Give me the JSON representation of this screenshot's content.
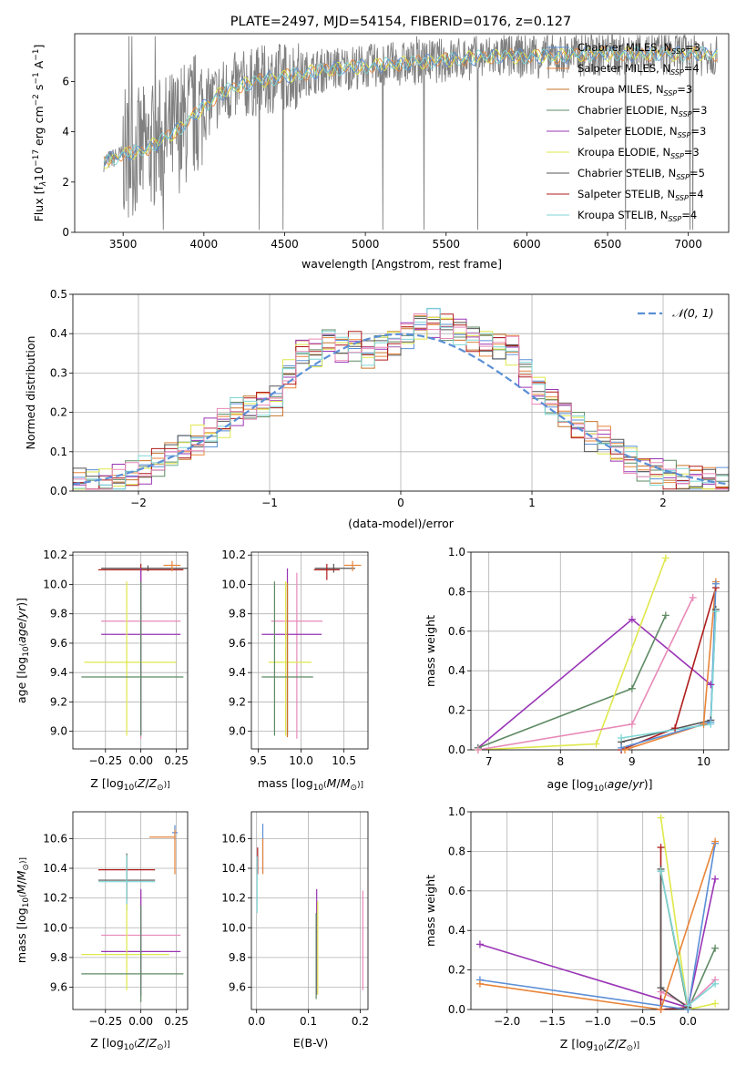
{
  "title": "PLATE=2497, MJD=54154, FIBERID=0176, z=0.127",
  "colors": {
    "chabrier_miles": "#5b8fd6",
    "salpeter_miles": "#e8853a",
    "kroupa_miles": "#c8732a",
    "chabrier_elodie": "#5e8a64",
    "salpeter_elodie": "#9a35b5",
    "kroupa_elodie": "#dfe84a",
    "chabrier_stelib": "#555555",
    "salpeter_stelib": "#b01c1c",
    "kroupa_stelib": "#7fd6d6",
    "pink": "#e88ab8",
    "data": "#808080",
    "normal": "#5b8fd6",
    "grid": "#b0b0b0"
  },
  "chart_data": [
    {
      "type": "line",
      "title": "PLATE=2497, MJD=54154, FIBERID=0176, z=0.127",
      "xlabel": "wavelength [Angstrom, rest frame]",
      "ylabel_parts": [
        "Flux [f",
        "λ",
        "10",
        "−17",
        " erg cm",
        "−2",
        " s",
        "−1",
        " A",
        "−1",
        "]"
      ],
      "xlim": [
        3200,
        7250
      ],
      "ylim": [
        0,
        7.9
      ],
      "xticks": [
        3500,
        4000,
        4500,
        5000,
        5500,
        6000,
        6500,
        7000
      ],
      "yticks": [
        0,
        2,
        4,
        6
      ],
      "continuum": [
        [
          3380,
          2.8
        ],
        [
          3500,
          3.1
        ],
        [
          3600,
          3.2
        ],
        [
          3700,
          3.5
        ],
        [
          3800,
          3.9
        ],
        [
          3900,
          4.4
        ],
        [
          4000,
          5.0
        ],
        [
          4100,
          5.5
        ],
        [
          4200,
          5.8
        ],
        [
          4400,
          6.1
        ],
        [
          4600,
          6.3
        ],
        [
          4800,
          6.5
        ],
        [
          5000,
          6.6
        ],
        [
          5200,
          6.7
        ],
        [
          5400,
          6.8
        ],
        [
          5600,
          6.9
        ],
        [
          5800,
          7.0
        ],
        [
          6000,
          7.0
        ],
        [
          6200,
          7.0
        ],
        [
          6400,
          7.1
        ],
        [
          6600,
          7.1
        ],
        [
          6800,
          7.1
        ],
        [
          7000,
          7.1
        ],
        [
          7180,
          7.1
        ]
      ],
      "legend": [
        {
          "label": "Chabrier MILES, N",
          "sub": "SSP",
          "tail": "=3",
          "color": "chabrier_miles"
        },
        {
          "label": "Salpeter MILES, N",
          "sub": "SSP",
          "tail": "=4",
          "color": "salpeter_miles"
        },
        {
          "label": "Kroupa MILES, N",
          "sub": "SSP",
          "tail": "=3",
          "color": "kroupa_miles"
        },
        {
          "label": "Chabrier ELODIE, N",
          "sub": "SSP",
          "tail": "=3",
          "color": "chabrier_elodie"
        },
        {
          "label": "Salpeter ELODIE, N",
          "sub": "SSP",
          "tail": "=3",
          "color": "salpeter_elodie"
        },
        {
          "label": "Kroupa ELODIE, N",
          "sub": "SSP",
          "tail": "=3",
          "color": "kroupa_elodie"
        },
        {
          "label": "Chabrier STELIB, N",
          "sub": "SSP",
          "tail": "=5",
          "color": "chabrier_stelib"
        },
        {
          "label": "Salpeter STELIB, N",
          "sub": "SSP",
          "tail": "=4",
          "color": "salpeter_stelib"
        },
        {
          "label": "Kroupa STELIB, N",
          "sub": "SSP",
          "tail": "=4",
          "color": "kroupa_stelib"
        }
      ],
      "legend_position": "upper right"
    },
    {
      "type": "histogram",
      "xlabel": "(data-model)/error",
      "ylabel": "Normed distribution",
      "xlim": [
        -2.5,
        2.5
      ],
      "ylim": [
        0,
        0.5
      ],
      "xticks": [
        -2,
        -1,
        0,
        1,
        2
      ],
      "yticks": [
        0.0,
        0.1,
        0.2,
        0.3,
        0.4,
        0.5
      ],
      "bin_edges": [
        -2.5,
        -2.4,
        -2.3,
        -2.2,
        -2.1,
        -2.0,
        -1.9,
        -1.8,
        -1.7,
        -1.6,
        -1.5,
        -1.4,
        -1.3,
        -1.2,
        -1.1,
        -1.0,
        -0.9,
        -0.8,
        -0.7,
        -0.6,
        -0.5,
        -0.4,
        -0.3,
        -0.2,
        -0.1,
        0.0,
        0.1,
        0.2,
        0.3,
        0.4,
        0.5,
        0.6,
        0.7,
        0.8,
        0.9,
        1.0,
        1.1,
        1.2,
        1.3,
        1.4,
        1.5,
        1.6,
        1.7,
        1.8,
        1.9,
        2.0,
        2.1,
        2.2,
        2.3,
        2.4,
        2.5
      ],
      "base_values": [
        0.02,
        0.02,
        0.025,
        0.03,
        0.04,
        0.05,
        0.07,
        0.09,
        0.11,
        0.13,
        0.15,
        0.17,
        0.2,
        0.21,
        0.22,
        0.23,
        0.3,
        0.36,
        0.35,
        0.38,
        0.36,
        0.37,
        0.35,
        0.37,
        0.38,
        0.4,
        0.42,
        0.43,
        0.42,
        0.41,
        0.39,
        0.38,
        0.37,
        0.36,
        0.3,
        0.26,
        0.23,
        0.2,
        0.17,
        0.14,
        0.13,
        0.1,
        0.08,
        0.06,
        0.05,
        0.04,
        0.03,
        0.03,
        0.025,
        0.02
      ],
      "normal_label": "𝒩(0, 1)",
      "legend_position": "upper right"
    },
    {
      "type": "errorbar",
      "xlabel": "Z [log10(Z/Z⊙)]",
      "ylabel": "age [log10(age/yr)]",
      "xlim": [
        -0.48,
        0.33
      ],
      "ylim": [
        8.88,
        10.22
      ],
      "xticks": [
        -0.25,
        0.0,
        0.25
      ],
      "yticks": [
        9.0,
        9.2,
        9.4,
        9.6,
        9.8,
        10.0,
        10.2
      ],
      "points": [
        {
          "x": 0.05,
          "y": 10.11,
          "xerr": [
            0.33,
            0.33
          ],
          "yerr": [
            0.02,
            0.02
          ],
          "color": "chabrier_stelib"
        },
        {
          "x": 0.0,
          "y": 10.1,
          "xerr": [
            0.3,
            0.3
          ],
          "yerr": [
            0.1,
            0.04
          ],
          "color": "salpeter_stelib"
        },
        {
          "x": 0.22,
          "y": 10.13,
          "xerr": [
            0.06,
            0.06
          ],
          "yerr": [
            0.04,
            0.03
          ],
          "color": "salpeter_miles"
        },
        {
          "x": 0.0,
          "y": 9.75,
          "xerr": [
            0.28,
            0.28
          ],
          "yerr": [
            0.8,
            0.33
          ],
          "color": "pink"
        },
        {
          "x": 0.0,
          "y": 9.66,
          "xerr": [
            0.28,
            0.28
          ],
          "yerr": [
            0.68,
            0.45
          ],
          "color": "salpeter_elodie"
        },
        {
          "x": -0.1,
          "y": 9.47,
          "xerr": [
            0.3,
            0.35
          ],
          "yerr": [
            0.5,
            0.55
          ],
          "color": "kroupa_elodie"
        },
        {
          "x": 0.0,
          "y": 9.37,
          "xerr": [
            0.42,
            0.3
          ],
          "yerr": [
            0.4,
            0.65
          ],
          "color": "chabrier_elodie"
        }
      ]
    },
    {
      "type": "errorbar",
      "xlabel": "mass [log10(M/M⊙)]",
      "xlim": [
        9.42,
        10.78
      ],
      "ylim": [
        8.88,
        10.22
      ],
      "xticks": [
        9.5,
        10.0,
        10.5
      ],
      "yticks": [
        9.0,
        9.2,
        9.4,
        9.6,
        9.8,
        10.0,
        10.2
      ],
      "points": [
        {
          "x": 10.38,
          "y": 10.11,
          "xerr": [
            0.22,
            0.25
          ],
          "yerr": [
            0.03,
            0.03
          ],
          "color": "chabrier_stelib"
        },
        {
          "x": 10.6,
          "y": 10.13,
          "xerr": [
            0.1,
            0.1
          ],
          "yerr": [
            0.04,
            0.03
          ],
          "color": "salpeter_miles"
        },
        {
          "x": 10.3,
          "y": 10.1,
          "xerr": [
            0.15,
            0.15
          ],
          "yerr": [
            0.07,
            0.04
          ],
          "color": "salpeter_stelib"
        },
        {
          "x": 9.95,
          "y": 9.75,
          "xerr": [
            0.3,
            0.3
          ],
          "yerr": [
            0.8,
            0.33
          ],
          "color": "pink"
        },
        {
          "x": 9.84,
          "y": 9.66,
          "xerr": [
            0.3,
            0.4
          ],
          "yerr": [
            0.68,
            0.45
          ],
          "color": "salpeter_elodie"
        },
        {
          "x": 9.82,
          "y": 9.47,
          "xerr": [
            0.2,
            0.3
          ],
          "yerr": [
            0.5,
            0.55
          ],
          "color": "kroupa_elodie"
        },
        {
          "x": 9.69,
          "y": 9.37,
          "xerr": [
            0.15,
            0.45
          ],
          "yerr": [
            0.4,
            0.65
          ],
          "color": "chabrier_elodie"
        },
        {
          "x": 9.84,
          "y": 9.66,
          "xerr": [
            0.0,
            0.0
          ],
          "yerr": [
            0.7,
            0.35
          ],
          "color": "kroupa_miles"
        }
      ]
    },
    {
      "type": "line",
      "xlabel": "age [log10(age/yr)]",
      "ylabel": "mass weight",
      "xlim": [
        6.75,
        10.35
      ],
      "ylim": [
        0,
        1.0
      ],
      "xticks": [
        7,
        8,
        9,
        10
      ],
      "yticks": [
        0.0,
        0.2,
        0.4,
        0.6,
        0.8,
        1.0
      ],
      "series": [
        {
          "color": "salpeter_elodie",
          "x": [
            6.85,
            9.0,
            10.1
          ],
          "y": [
            0.01,
            0.66,
            0.33
          ]
        },
        {
          "color": "chabrier_elodie",
          "x": [
            6.85,
            9.0,
            9.47
          ],
          "y": [
            0.01,
            0.31,
            0.68
          ]
        },
        {
          "color": "kroupa_elodie",
          "x": [
            6.85,
            8.5,
            9.47
          ],
          "y": [
            0.0,
            0.03,
            0.97
          ]
        },
        {
          "color": "pink",
          "x": [
            6.85,
            9.0,
            9.85
          ],
          "y": [
            0.0,
            0.13,
            0.77
          ]
        },
        {
          "color": "salpeter_stelib",
          "x": [
            8.85,
            9.6,
            10.17
          ],
          "y": [
            0.0,
            0.11,
            0.82
          ]
        },
        {
          "color": "chabrier_stelib",
          "x": [
            8.85,
            10.1,
            10.17
          ],
          "y": [
            0.04,
            0.15,
            0.71
          ]
        },
        {
          "color": "salpeter_miles",
          "x": [
            8.9,
            10.0,
            10.17
          ],
          "y": [
            0.0,
            0.13,
            0.85
          ]
        },
        {
          "color": "chabrier_miles",
          "x": [
            8.85,
            10.1,
            10.17
          ],
          "y": [
            0.01,
            0.14,
            0.84
          ]
        },
        {
          "color": "kroupa_stelib",
          "x": [
            8.85,
            10.1,
            10.17
          ],
          "y": [
            0.06,
            0.13,
            0.7
          ]
        }
      ]
    },
    {
      "type": "errorbar",
      "xlabel": "Z [log10(Z/Z⊙)]",
      "ylabel": "mass [log10(M/M⊙)]",
      "xlim": [
        -0.48,
        0.33
      ],
      "ylim": [
        9.45,
        10.78
      ],
      "xticks": [
        -0.25,
        0.0,
        0.25
      ],
      "yticks": [
        9.6,
        9.8,
        10.0,
        10.2,
        10.4,
        10.6
      ],
      "points": [
        {
          "x": 0.24,
          "y": 10.64,
          "xerr": [
            0.02,
            0.02
          ],
          "yerr": [
            0.05,
            0.05
          ],
          "color": "chabrier_miles"
        },
        {
          "x": 0.24,
          "y": 10.61,
          "xerr": [
            0.18,
            0.0
          ],
          "yerr": [
            0.25,
            0.05
          ],
          "color": "salpeter_miles"
        },
        {
          "x": -0.1,
          "y": 10.39,
          "xerr": [
            0.2,
            0.2
          ],
          "yerr": [
            0.2,
            0.1
          ],
          "color": "salpeter_stelib"
        },
        {
          "x": -0.1,
          "y": 10.32,
          "xerr": [
            0.2,
            0.2
          ],
          "yerr": [
            0.2,
            0.18
          ],
          "color": "chabrier_stelib"
        },
        {
          "x": -0.1,
          "y": 10.31,
          "xerr": [
            0.2,
            0.2
          ],
          "yerr": [
            0.2,
            0.18
          ],
          "color": "kroupa_stelib"
        },
        {
          "x": 0.0,
          "y": 9.95,
          "xerr": [
            0.28,
            0.28
          ],
          "yerr": [
            0.35,
            0.3
          ],
          "color": "pink"
        },
        {
          "x": 0.0,
          "y": 9.84,
          "xerr": [
            0.28,
            0.28
          ],
          "yerr": [
            0.3,
            0.42
          ],
          "color": "salpeter_elodie"
        },
        {
          "x": -0.1,
          "y": 9.82,
          "xerr": [
            0.32,
            0.3
          ],
          "yerr": [
            0.24,
            0.34
          ],
          "color": "kroupa_elodie"
        },
        {
          "x": 0.0,
          "y": 9.69,
          "xerr": [
            0.42,
            0.3
          ],
          "yerr": [
            0.19,
            0.46
          ],
          "color": "chabrier_elodie"
        }
      ]
    },
    {
      "type": "errorbar",
      "xlabel": "E(B-V)",
      "xlim": [
        -0.01,
        0.215
      ],
      "ylim": [
        9.45,
        10.78
      ],
      "xticks": [
        0.0,
        0.1,
        0.2
      ],
      "yticks": [
        9.6,
        9.8,
        10.0,
        10.2,
        10.4,
        10.6
      ],
      "points": [
        {
          "x": 0.012,
          "y": 10.52,
          "xerr": [
            0,
            0
          ],
          "yerr": [
            0.15,
            0.18
          ],
          "color": "chabrier_miles"
        },
        {
          "x": 0.012,
          "y": 10.48,
          "xerr": [
            0,
            0
          ],
          "yerr": [
            0.12,
            0.12
          ],
          "color": "salpeter_miles"
        },
        {
          "x": 0.002,
          "y": 10.46,
          "xerr": [
            0,
            0
          ],
          "yerr": [
            0.1,
            0.08
          ],
          "color": "salpeter_stelib"
        },
        {
          "x": 0.001,
          "y": 10.3,
          "xerr": [
            0,
            0
          ],
          "yerr": [
            0.2,
            0.18
          ],
          "color": "kroupa_stelib"
        },
        {
          "x": 0.116,
          "y": 9.9,
          "xerr": [
            0,
            0
          ],
          "yerr": [
            0.35,
            0.36
          ],
          "color": "salpeter_elodie"
        },
        {
          "x": 0.118,
          "y": 9.8,
          "xerr": [
            0,
            0
          ],
          "yerr": [
            0.25,
            0.38
          ],
          "color": "kroupa_elodie"
        },
        {
          "x": 0.115,
          "y": 9.8,
          "xerr": [
            0,
            0
          ],
          "yerr": [
            0.28,
            0.3
          ],
          "color": "chabrier_elodie"
        },
        {
          "x": 0.205,
          "y": 9.9,
          "xerr": [
            0,
            0
          ],
          "yerr": [
            0.32,
            0.35
          ],
          "color": "pink"
        }
      ]
    },
    {
      "type": "line",
      "xlabel": "Z [log10(Z/Z⊙)]",
      "ylabel": "mass weight",
      "xlim": [
        -2.4,
        0.45
      ],
      "ylim": [
        0,
        1.0
      ],
      "xticks": [
        -2.0,
        -1.5,
        -1.0,
        -0.5,
        0.0
      ],
      "yticks": [
        0.0,
        0.2,
        0.4,
        0.6,
        0.8,
        1.0
      ],
      "series": [
        {
          "color": "salpeter_elodie",
          "x": [
            -2.3,
            0.0,
            0.3
          ],
          "y": [
            0.33,
            0.01,
            0.66
          ]
        },
        {
          "color": "chabrier_elodie",
          "x": [
            -0.3,
            0.0,
            0.3
          ],
          "y": [
            0.7,
            0.0,
            0.31
          ]
        },
        {
          "color": "kroupa_elodie",
          "x": [
            -0.3,
            0.0,
            0.3
          ],
          "y": [
            0.97,
            0.0,
            0.03
          ]
        },
        {
          "color": "pink",
          "x": [
            -0.3,
            0.0,
            0.3
          ],
          "y": [
            0.09,
            0.02,
            0.15
          ]
        },
        {
          "color": "salpeter_stelib",
          "x": [
            -0.3,
            -0.3,
            0.0
          ],
          "y": [
            0.82,
            0.0,
            0.01
          ]
        },
        {
          "color": "chabrier_stelib",
          "x": [
            -0.3,
            -0.3,
            0.0
          ],
          "y": [
            0.71,
            0.11,
            0.01
          ]
        },
        {
          "color": "chabrier_miles",
          "x": [
            -2.3,
            0.0,
            0.3
          ],
          "y": [
            0.15,
            0.0,
            0.84
          ]
        },
        {
          "color": "salpeter_miles",
          "x": [
            -2.3,
            -0.3,
            0.3
          ],
          "y": [
            0.13,
            0.0,
            0.85
          ]
        },
        {
          "color": "kroupa_stelib",
          "x": [
            -0.3,
            0.0,
            0.3
          ],
          "y": [
            0.7,
            0.02,
            0.13
          ]
        }
      ]
    }
  ]
}
